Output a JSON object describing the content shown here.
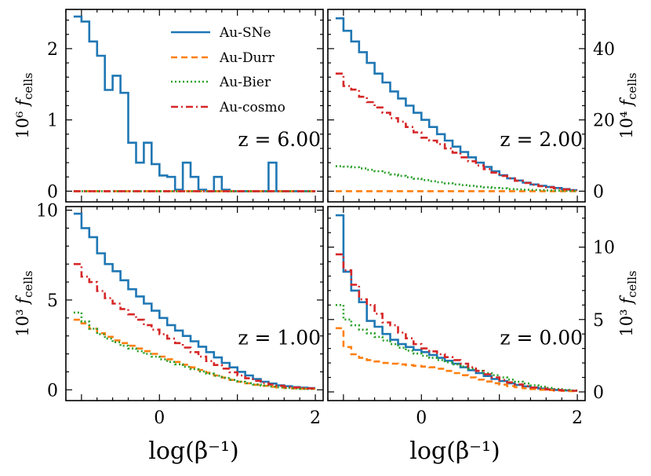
{
  "chart_data": {
    "type": "line",
    "xlabel": "log(β⁻¹)",
    "legend": [
      "Au-SNe",
      "Au-Durr",
      "Au-Bier",
      "Au-cosmo"
    ],
    "panels": [
      {
        "z_label": "z = 6.00",
        "ylabel_prefix": "10⁶",
        "ylabel_var": "f",
        "ylabel_sub": "cells",
        "y_side": "left",
        "xlim": [
          -1.2,
          2.1
        ],
        "ylim": [
          -0.15,
          2.55
        ],
        "xticks": [
          0,
          2
        ],
        "yticks": [
          0,
          1,
          2
        ],
        "series": [
          {
            "name": "Au-SNe",
            "color": "#1f77b4",
            "dash": "",
            "x": [
              -1.05,
              -0.95,
              -0.85,
              -0.75,
              -0.65,
              -0.55,
              -0.45,
              -0.35,
              -0.25,
              -0.15,
              -0.05,
              0.05,
              0.15,
              0.25,
              0.35,
              0.45,
              0.55,
              0.65,
              0.75,
              0.85,
              0.95,
              1.05,
              1.15,
              1.25,
              1.35,
              1.45,
              1.55,
              1.65,
              1.75,
              1.85,
              1.95
            ],
            "y": [
              2.45,
              2.38,
              2.1,
              1.9,
              1.42,
              1.62,
              1.38,
              0.68,
              0.4,
              0.68,
              0.38,
              0.22,
              0.2,
              0.02,
              0.4,
              0.2,
              0.02,
              0.0,
              0.2,
              0.02,
              0.0,
              0.0,
              0.0,
              0.0,
              0.0,
              0.4,
              0.0,
              0.0,
              0.0,
              0.0,
              0.0
            ]
          },
          {
            "name": "Au-Durr",
            "color": "#ff7f0e",
            "dash": "8,5",
            "x": [
              -1.05,
              1.95
            ],
            "y": [
              0.0,
              0.0
            ]
          },
          {
            "name": "Au-Bier",
            "color": "#2ca02c",
            "dash": "2,3",
            "x": [
              -1.05,
              1.95
            ],
            "y": [
              0.0,
              0.0
            ]
          },
          {
            "name": "Au-cosmo",
            "color": "#d62728",
            "dash": "9,4,2,4",
            "x": [
              -1.05,
              1.95
            ],
            "y": [
              0.0,
              0.0
            ]
          }
        ]
      },
      {
        "z_label": "z = 2.00",
        "ylabel_prefix": "10⁴",
        "ylabel_var": "f",
        "ylabel_sub": "cells",
        "y_side": "right",
        "xlim": [
          -1.2,
          2.1
        ],
        "ylim": [
          -3,
          51
        ],
        "xticks": [
          0,
          2
        ],
        "yticks": [
          0,
          20,
          40
        ],
        "series": [
          {
            "name": "Au-SNe",
            "color": "#1f77b4",
            "dash": "",
            "x": [
              -1.05,
              -0.95,
              -0.85,
              -0.75,
              -0.65,
              -0.55,
              -0.45,
              -0.35,
              -0.25,
              -0.15,
              -0.05,
              0.05,
              0.15,
              0.25,
              0.35,
              0.45,
              0.55,
              0.65,
              0.75,
              0.85,
              0.95,
              1.05,
              1.15,
              1.25,
              1.35,
              1.45,
              1.55,
              1.65,
              1.75,
              1.85,
              1.95
            ],
            "y": [
              48.5,
              45,
              42,
              39,
              36,
              33,
              30.5,
              28,
              26,
              24,
              22,
              20,
              18,
              16,
              14.2,
              12.5,
              11,
              9.5,
              8,
              6.8,
              5.6,
              4.5,
              3.6,
              3.0,
              2.4,
              1.9,
              1.5,
              1.2,
              0.9,
              0.6,
              0.3
            ]
          },
          {
            "name": "Au-Durr",
            "color": "#ff7f0e",
            "dash": "8,5",
            "x": [
              -1.05,
              1.95
            ],
            "y": [
              0.0,
              0.0
            ]
          },
          {
            "name": "Au-Bier",
            "color": "#2ca02c",
            "dash": "2,3",
            "x": [
              -1.05,
              -0.95,
              -0.85,
              -0.75,
              -0.65,
              -0.55,
              -0.45,
              -0.35,
              -0.25,
              -0.15,
              -0.05,
              0.05,
              0.15,
              0.25,
              0.35,
              0.45,
              0.55,
              0.65,
              0.75,
              0.85,
              0.95,
              1.05,
              1.15,
              1.25,
              1.35,
              1.45,
              1.55,
              1.65,
              1.75,
              1.85,
              1.95
            ],
            "y": [
              7,
              6.9,
              6.7,
              6.4,
              6,
              5.6,
              5.2,
              4.7,
              4.3,
              3.9,
              3.5,
              3.1,
              2.8,
              2.5,
              2.2,
              1.9,
              1.7,
              1.5,
              1.3,
              1.1,
              0.9,
              0.8,
              0.6,
              0.5,
              0.4,
              0.35,
              0.3,
              0.2,
              0.15,
              0.1,
              0.05
            ]
          },
          {
            "name": "Au-cosmo",
            "color": "#d62728",
            "dash": "9,4,2,4",
            "x": [
              -1.05,
              -0.95,
              -0.85,
              -0.75,
              -0.65,
              -0.55,
              -0.45,
              -0.35,
              -0.25,
              -0.15,
              -0.05,
              0.05,
              0.15,
              0.25,
              0.35,
              0.45,
              0.55,
              0.65,
              0.75,
              0.85,
              0.95,
              1.05,
              1.15,
              1.25,
              1.35,
              1.45,
              1.55,
              1.65,
              1.75,
              1.85,
              1.95
            ],
            "y": [
              33,
              29.5,
              28.5,
              26.5,
              25,
              23.5,
              22,
              20.5,
              19.5,
              18,
              16.5,
              15,
              14.2,
              13.2,
              12,
              10.8,
              9.5,
              8.4,
              7.2,
              6.2,
              5.2,
              4.3,
              3.6,
              2.9,
              2.3,
              1.8,
              1.4,
              1.1,
              0.8,
              0.5,
              0.3
            ]
          }
        ]
      },
      {
        "z_label": "z = 1.00",
        "ylabel_prefix": "10³",
        "ylabel_var": "f",
        "ylabel_sub": "cells",
        "y_side": "left",
        "xlim": [
          -1.2,
          2.1
        ],
        "ylim": [
          -0.6,
          10.2
        ],
        "xticks": [
          0,
          2
        ],
        "yticks": [
          0,
          5,
          10
        ],
        "series": [
          {
            "name": "Au-SNe",
            "color": "#1f77b4",
            "dash": "",
            "x": [
              -1.05,
              -0.95,
              -0.85,
              -0.75,
              -0.65,
              -0.55,
              -0.45,
              -0.35,
              -0.25,
              -0.15,
              -0.05,
              0.05,
              0.15,
              0.25,
              0.35,
              0.45,
              0.55,
              0.65,
              0.75,
              0.85,
              0.95,
              1.05,
              1.15,
              1.25,
              1.35,
              1.45,
              1.55,
              1.65,
              1.75,
              1.85,
              1.95
            ],
            "y": [
              9.8,
              9,
              8.5,
              7.6,
              7,
              6.6,
              6.1,
              5.6,
              5.2,
              4.8,
              4.4,
              4.0,
              3.6,
              3.3,
              3.0,
              2.7,
              2.4,
              2.1,
              1.8,
              1.5,
              1.25,
              1.0,
              0.8,
              0.6,
              0.45,
              0.35,
              0.25,
              0.2,
              0.15,
              0.12,
              0.1
            ]
          },
          {
            "name": "Au-Durr",
            "color": "#ff7f0e",
            "dash": "8,5",
            "x": [
              -1.05,
              -0.95,
              -0.85,
              -0.75,
              -0.65,
              -0.55,
              -0.45,
              -0.35,
              -0.25,
              -0.15,
              -0.05,
              0.05,
              0.15,
              0.25,
              0.35,
              0.45,
              0.55,
              0.65,
              0.75,
              0.85,
              0.95,
              1.05,
              1.15,
              1.25,
              1.35,
              1.45,
              1.55,
              1.65,
              1.75,
              1.85,
              1.95
            ],
            "y": [
              3.9,
              3.7,
              3.4,
              3.15,
              2.95,
              2.75,
              2.6,
              2.45,
              2.3,
              2.15,
              2.0,
              1.85,
              1.7,
              1.55,
              1.4,
              1.25,
              1.1,
              0.95,
              0.8,
              0.68,
              0.55,
              0.45,
              0.36,
              0.28,
              0.22,
              0.17,
              0.13,
              0.1,
              0.08,
              0.06,
              0.05
            ]
          },
          {
            "name": "Au-Bier",
            "color": "#2ca02c",
            "dash": "2,3",
            "x": [
              -1.05,
              -0.95,
              -0.85,
              -0.75,
              -0.65,
              -0.55,
              -0.45,
              -0.35,
              -0.25,
              -0.15,
              -0.05,
              0.05,
              0.15,
              0.25,
              0.35,
              0.45,
              0.55,
              0.65,
              0.75,
              0.85,
              0.95,
              1.05,
              1.15,
              1.25,
              1.35,
              1.45,
              1.55,
              1.65,
              1.75,
              1.85,
              1.95
            ],
            "y": [
              4.3,
              3.8,
              3.4,
              3.1,
              2.85,
              2.65,
              2.45,
              2.3,
              2.15,
              2.0,
              1.85,
              1.7,
              1.55,
              1.42,
              1.28,
              1.15,
              1.02,
              0.9,
              0.78,
              0.66,
              0.55,
              0.45,
              0.37,
              0.3,
              0.24,
              0.18,
              0.14,
              0.1,
              0.08,
              0.06,
              0.05
            ]
          },
          {
            "name": "Au-cosmo",
            "color": "#d62728",
            "dash": "9,4,2,4",
            "x": [
              -1.05,
              -0.95,
              -0.85,
              -0.75,
              -0.65,
              -0.55,
              -0.45,
              -0.35,
              -0.25,
              -0.15,
              -0.05,
              0.05,
              0.15,
              0.25,
              0.35,
              0.45,
              0.55,
              0.65,
              0.75,
              0.85,
              0.95,
              1.05,
              1.15,
              1.25,
              1.35,
              1.45,
              1.55,
              1.65,
              1.75,
              1.85,
              1.95
            ],
            "y": [
              7.0,
              6.3,
              6.0,
              5.5,
              5.1,
              4.8,
              4.5,
              4.2,
              3.9,
              3.6,
              3.35,
              3.1,
              2.85,
              2.6,
              2.35,
              2.1,
              1.85,
              1.6,
              1.38,
              1.18,
              0.98,
              0.8,
              0.64,
              0.5,
              0.38,
              0.29,
              0.22,
              0.17,
              0.13,
              0.1,
              0.08
            ]
          }
        ]
      },
      {
        "z_label": "z = 0.00",
        "ylabel_prefix": "10³",
        "ylabel_var": "f",
        "ylabel_sub": "cells",
        "y_side": "right",
        "xlim": [
          -1.2,
          2.1
        ],
        "ylim": [
          -0.6,
          12.8
        ],
        "xticks": [
          0,
          2
        ],
        "yticks": [
          0,
          5,
          10
        ],
        "series": [
          {
            "name": "Au-SNe",
            "color": "#1f77b4",
            "dash": "",
            "x": [
              -1.05,
              -0.95,
              -0.85,
              -0.75,
              -0.65,
              -0.55,
              -0.45,
              -0.35,
              -0.25,
              -0.15,
              -0.05,
              0.05,
              0.15,
              0.25,
              0.35,
              0.45,
              0.55,
              0.65,
              0.75,
              0.85,
              0.95,
              1.05,
              1.15,
              1.25,
              1.35,
              1.45,
              1.55,
              1.65,
              1.75,
              1.85,
              1.95
            ],
            "y": [
              12.2,
              8.3,
              7.0,
              6.2,
              4.9,
              4.5,
              4.0,
              3.6,
              3.3,
              3.1,
              2.9,
              2.75,
              2.55,
              2.35,
              2.15,
              1.95,
              1.7,
              1.5,
              1.3,
              1.1,
              0.9,
              0.75,
              0.6,
              0.48,
              0.38,
              0.3,
              0.23,
              0.18,
              0.14,
              0.1,
              0.08
            ]
          },
          {
            "name": "Au-Durr",
            "color": "#ff7f0e",
            "dash": "8,5",
            "x": [
              -1.05,
              -0.95,
              -0.85,
              -0.75,
              -0.65,
              -0.55,
              -0.45,
              -0.35,
              -0.25,
              -0.15,
              -0.05,
              0.05,
              0.15,
              0.25,
              0.35,
              0.45,
              0.55,
              0.65,
              0.75,
              0.85,
              0.95,
              1.05,
              1.15,
              1.25,
              1.35,
              1.45,
              1.55,
              1.65,
              1.75,
              1.85,
              1.95
            ],
            "y": [
              4.4,
              3.1,
              2.6,
              2.35,
              2.2,
              2.1,
              2.0,
              1.95,
              1.9,
              1.85,
              1.8,
              1.75,
              1.7,
              1.6,
              1.45,
              1.3,
              1.15,
              1.0,
              0.85,
              0.72,
              0.6,
              0.5,
              0.4,
              0.32,
              0.25,
              0.2,
              0.15,
              0.12,
              0.09,
              0.07,
              0.05
            ]
          },
          {
            "name": "Au-Bier",
            "color": "#2ca02c",
            "dash": "2,3",
            "x": [
              -1.05,
              -0.95,
              -0.85,
              -0.75,
              -0.65,
              -0.55,
              -0.45,
              -0.35,
              -0.25,
              -0.15,
              -0.05,
              0.05,
              0.15,
              0.25,
              0.35,
              0.45,
              0.55,
              0.65,
              0.75,
              0.85,
              0.95,
              1.05,
              1.15,
              1.25,
              1.35,
              1.45,
              1.55,
              1.65,
              1.75,
              1.85,
              1.95
            ],
            "y": [
              6.0,
              5.0,
              4.6,
              4.3,
              4.05,
              3.8,
              3.55,
              3.3,
              3.05,
              2.85,
              2.65,
              2.5,
              2.35,
              2.2,
              2.05,
              1.9,
              1.75,
              1.6,
              1.45,
              1.3,
              1.15,
              1.0,
              0.85,
              0.7,
              0.58,
              0.46,
              0.36,
              0.28,
              0.2,
              0.14,
              0.1
            ]
          },
          {
            "name": "Au-cosmo",
            "color": "#d62728",
            "dash": "9,4,2,4",
            "x": [
              -1.05,
              -0.95,
              -0.85,
              -0.75,
              -0.65,
              -0.55,
              -0.45,
              -0.35,
              -0.25,
              -0.15,
              -0.05,
              0.05,
              0.15,
              0.25,
              0.35,
              0.45,
              0.55,
              0.65,
              0.75,
              0.85,
              0.95,
              1.05,
              1.15,
              1.25,
              1.35,
              1.45,
              1.55,
              1.65,
              1.75,
              1.85,
              1.95
            ],
            "y": [
              9.5,
              8.4,
              7.4,
              6.4,
              6.0,
              5.4,
              4.8,
              4.6,
              4.1,
              3.7,
              3.3,
              3.0,
              2.8,
              2.6,
              2.4,
              2.2,
              1.95,
              1.7,
              1.45,
              1.22,
              1.0,
              0.82,
              0.66,
              0.52,
              0.4,
              0.3,
              0.23,
              0.17,
              0.13,
              0.1,
              0.08
            ]
          }
        ]
      }
    ]
  }
}
